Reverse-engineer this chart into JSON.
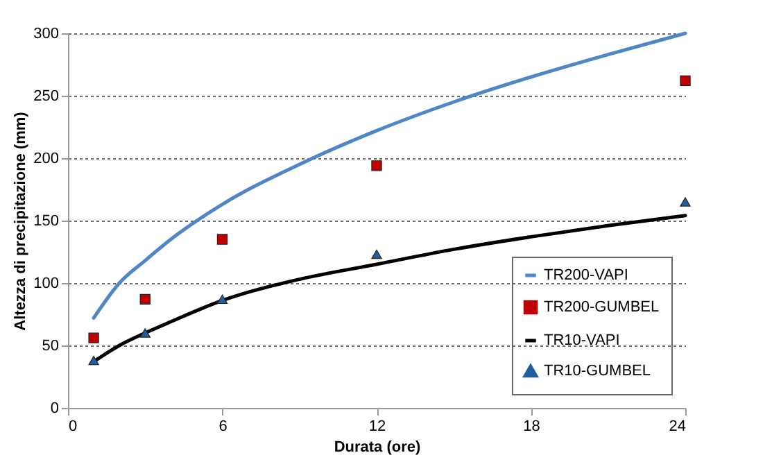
{
  "chart_data": {
    "type": "line",
    "xlabel": "Durata (ore)",
    "ylabel": "Altezza di precipitazione (mm)",
    "xlim": [
      0,
      24
    ],
    "xticks": [
      0,
      6,
      12,
      18,
      24
    ],
    "ylim": [
      0,
      300
    ],
    "yticks": [
      0,
      50,
      100,
      150,
      200,
      250,
      300
    ],
    "grid": "y",
    "legend": "bottom right",
    "series": [
      {
        "name": "TR200-VAPI",
        "marker": "none",
        "color": "#4f86c6",
        "x": [
          1,
          2,
          3,
          4,
          6,
          9,
          12,
          15,
          18,
          21,
          24
        ],
        "values": [
          72,
          100,
          118,
          135,
          163,
          195,
          222,
          245,
          265,
          283,
          300
        ]
      },
      {
        "name": "TR200-GUMBEL",
        "type": "scatter",
        "marker": "square",
        "color": "#c00000",
        "x": [
          1,
          3,
          6,
          12,
          24
        ],
        "values": [
          56,
          87,
          135,
          194,
          262
        ]
      },
      {
        "name": "TR10-VAPI",
        "marker": "none",
        "color": "#000000",
        "x": [
          1,
          2,
          3,
          4,
          6,
          9,
          12,
          15,
          18,
          21,
          24
        ],
        "values": [
          37,
          50,
          60,
          69,
          86,
          103,
          115,
          127,
          137,
          146,
          154
        ]
      },
      {
        "name": "TR10-GUMBEL",
        "type": "scatter",
        "marker": "triangle",
        "color": "#1f5f9e",
        "x": [
          1,
          3,
          6,
          12,
          24
        ],
        "values": [
          38,
          60,
          87,
          123,
          165
        ]
      }
    ]
  }
}
